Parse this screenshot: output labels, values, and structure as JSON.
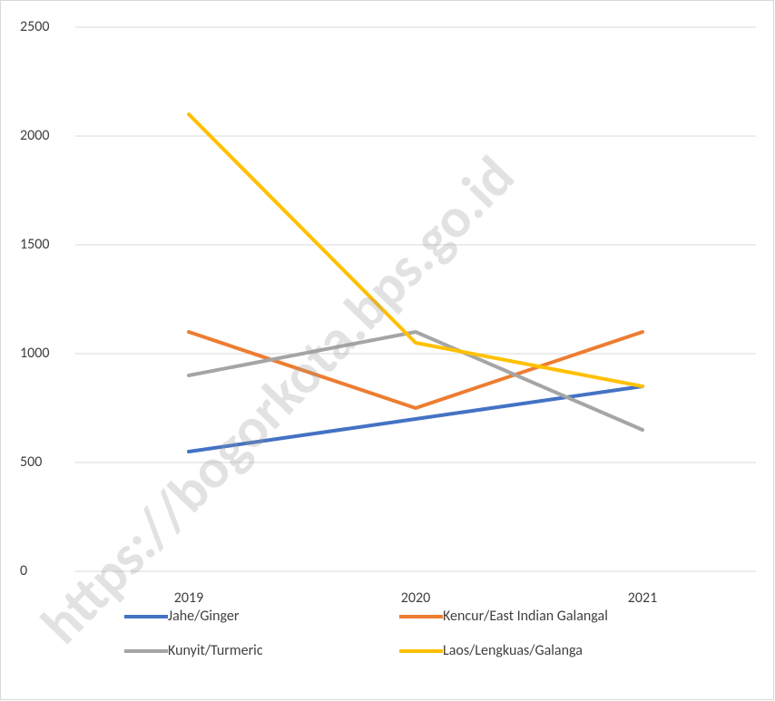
{
  "chart_data": {
    "type": "line",
    "categories": [
      "2019",
      "2020",
      "2021"
    ],
    "series": [
      {
        "name": "Jahe/Ginger",
        "color": "#4472c4",
        "values": [
          550,
          700,
          850
        ]
      },
      {
        "name": "Kencur/East Indian Galangal",
        "color": "#ed7d31",
        "values": [
          1100,
          750,
          1100
        ]
      },
      {
        "name": "Kunyit/Turmeric",
        "color": "#a5a5a5",
        "values": [
          900,
          1100,
          650
        ]
      },
      {
        "name": "Laos/Lengkuas/Galanga",
        "color": "#ffc000",
        "values": [
          2100,
          1050,
          850
        ]
      }
    ],
    "ylim": [
      0,
      2500
    ],
    "yticks": [
      0,
      500,
      1000,
      1500,
      2000,
      2500
    ],
    "grid": true,
    "legend": "bottom",
    "watermark": "https://bogorkota.bps.go.id"
  }
}
